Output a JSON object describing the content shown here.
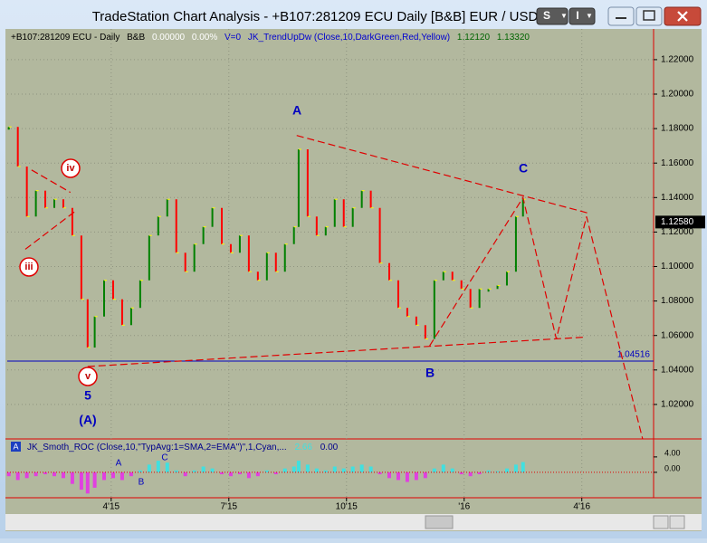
{
  "window": {
    "title": "TradeStation Chart Analysis - +B107:281209 ECU Daily [B&B] EUR / USD",
    "buttons": [
      "S",
      "I"
    ]
  },
  "header": {
    "symbol": "+B107:281209 ECU - Daily",
    "study": "B&B",
    "change": "0.00000",
    "change_pct": "0.00%",
    "volume": "V=0",
    "indicator": "JK_TrendUpDw (Close,10,DarkGreen,Red,Yellow)",
    "value1": "1.12120",
    "value2": "1.13320"
  },
  "chart_data": {
    "type": "bar",
    "x": [
      0.39,
      0.62,
      0.85,
      1.08,
      1.32,
      1.55,
      1.78,
      2.01,
      2.24,
      2.4,
      2.58,
      2.82,
      3.05,
      3.28,
      3.51,
      3.74,
      3.97,
      4.2,
      4.43,
      4.66,
      4.89,
      5.12,
      5.35,
      5.58,
      5.82,
      6.05,
      6.28,
      6.51,
      6.74,
      6.97,
      7.2,
      7.43,
      7.66,
      7.78,
      8.01,
      8.24,
      8.47,
      8.7,
      8.93,
      9.16,
      9.39,
      9.62,
      9.85,
      10.09,
      10.32,
      10.55,
      10.78,
      11.01,
      11.24,
      11.47,
      11.7,
      11.93,
      12.16,
      12.39,
      12.62,
      12.85,
      13.09,
      13.32,
      13.5
    ],
    "series": [
      {
        "name": "Close",
        "up_color": "#008000",
        "down_color": "#ff0000",
        "values": [
          1.181,
          1.158,
          1.129,
          1.144,
          1.134,
          1.139,
          1.134,
          1.118,
          1.081,
          1.053,
          1.071,
          1.092,
          1.081,
          1.066,
          1.076,
          1.092,
          1.118,
          1.129,
          1.139,
          1.108,
          1.097,
          1.113,
          1.123,
          1.134,
          1.113,
          1.108,
          1.118,
          1.097,
          1.092,
          1.108,
          1.097,
          1.113,
          1.123,
          1.168,
          1.129,
          1.118,
          1.123,
          1.139,
          1.123,
          1.134,
          1.144,
          1.134,
          1.102,
          1.092,
          1.076,
          1.071,
          1.066,
          1.058,
          1.092,
          1.097,
          1.092,
          1.087,
          1.076,
          1.087,
          1.087,
          1.089,
          1.097,
          1.129,
          1.139
        ]
      }
    ],
    "xlim": [
      0.35,
      16.83
    ],
    "xticks": [
      {
        "value": 3,
        "label": "4'15"
      },
      {
        "value": 6,
        "label": "7'15"
      },
      {
        "value": 9,
        "label": "10'15"
      },
      {
        "value": 12,
        "label": "'16"
      },
      {
        "value": 15,
        "label": "4'16"
      }
    ],
    "ylim": [
      1.0,
      1.2378
    ],
    "yticks": [
      {
        "value": 1.02,
        "label": "1.02000"
      },
      {
        "value": 1.04,
        "label": "1.04000"
      },
      {
        "value": 1.06,
        "label": "1.06000"
      },
      {
        "value": 1.08,
        "label": "1.08000"
      },
      {
        "value": 1.1,
        "label": "1.10000"
      },
      {
        "value": 1.12,
        "label": "1.12000"
      },
      {
        "value": 1.14,
        "label": "1.14000"
      },
      {
        "value": 1.16,
        "label": "1.16000"
      },
      {
        "value": 1.18,
        "label": "1.18000"
      },
      {
        "value": 1.2,
        "label": "1.20000"
      },
      {
        "value": 1.22,
        "label": "1.22000"
      }
    ],
    "grid": true,
    "last_price": {
      "value": 1.1258,
      "label": "1.12580"
    },
    "hline": {
      "value": 1.04516,
      "label": "1.04516",
      "color": "#0000c0"
    },
    "trendlines": [
      {
        "color": "#e00000",
        "points": [
          [
            7.73,
            1.176
          ],
          [
            15.16,
            1.131
          ]
        ]
      },
      {
        "color": "#e00000",
        "points": [
          [
            2.4,
            1.042
          ],
          [
            15.05,
            1.059
          ]
        ]
      },
      {
        "color": "#e00000",
        "points": [
          [
            11.12,
            1.054
          ],
          [
            13.5,
            1.14
          ],
          [
            14.35,
            1.058
          ],
          [
            15.12,
            1.129
          ],
          [
            16.55,
            1.0
          ]
        ]
      },
      {
        "color": "#e00000",
        "points": [
          [
            0.97,
            1.156
          ],
          [
            1.96,
            1.143
          ]
        ]
      },
      {
        "color": "#e00000",
        "points": [
          [
            0.81,
            1.11
          ],
          [
            2.08,
            1.132
          ]
        ]
      }
    ],
    "annotations": [
      "A",
      "B",
      "C",
      "5",
      "(A)",
      "iii",
      "iv",
      "v"
    ]
  },
  "indicator": {
    "type": "histogram",
    "label": "A",
    "title": "JK_Smoth_ROC (Close,10,\"TypAvg:1=SMA,2=EMA\")\",1,Cyan,...",
    "value1": "2.66",
    "value2": "0.00",
    "pos_color": "#40e0e0",
    "neg_color": "#e040e0",
    "values": [
      -1,
      -2,
      -1.5,
      -1,
      -0.5,
      -1,
      -1.5,
      -3,
      -4.5,
      -5.5,
      -4,
      -2,
      -1.5,
      -2,
      -1,
      0.5,
      2,
      3,
      2.5,
      0.5,
      -1,
      0.5,
      1.5,
      1,
      -0.5,
      -1,
      -0.5,
      -1.5,
      -1,
      0.5,
      -0.5,
      1,
      1.5,
      3,
      2,
      1,
      0.5,
      1.5,
      1,
      1.5,
      2,
      1.5,
      -0.5,
      -1.5,
      -2,
      -2.5,
      -2,
      -1.5,
      1,
      2,
      1,
      -0.5,
      -1,
      -0.5,
      0.5,
      0.3,
      1,
      2,
      2.66
    ],
    "ylim": [
      -6.6,
      8.2
    ],
    "yticks": [
      {
        "value": 4,
        "label": "4.00"
      },
      {
        "value": 0,
        "label": "0.00"
      }
    ],
    "annotations": [
      "A",
      "B",
      "C"
    ]
  }
}
